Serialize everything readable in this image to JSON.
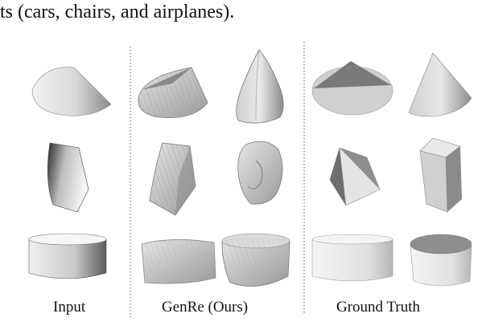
{
  "caption_fragment": "ts (cars, chairs, and airplanes).",
  "columns": {
    "input": "Input",
    "genre": "GenRe (Ours)",
    "ground_truth": "Ground Truth"
  }
}
